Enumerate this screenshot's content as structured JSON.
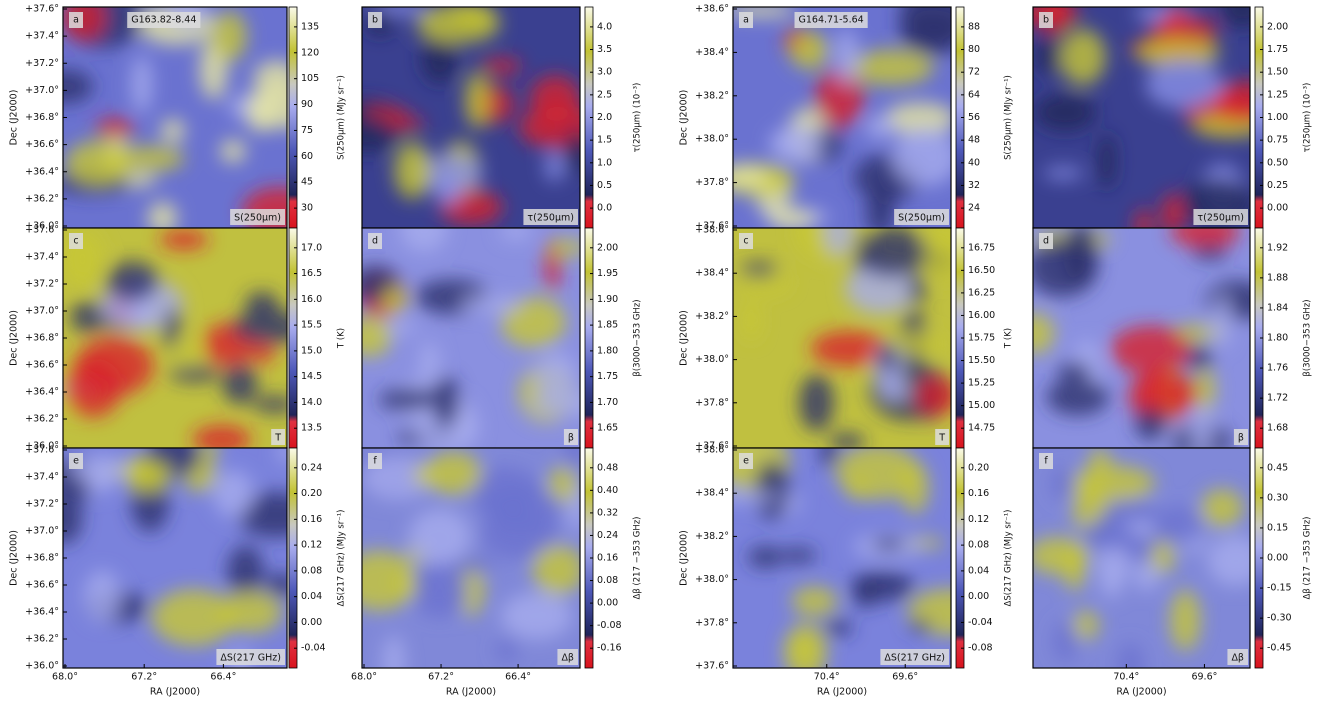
{
  "figures": [
    {
      "object": "G163.82-8.44",
      "y_axis_label": "Dec (J2000)",
      "x_axis_label": "RA (J2000)",
      "yticks": [
        "+36.0°",
        "+36.2°",
        "+36.4°",
        "+36.6°",
        "+36.8°",
        "+37.0°",
        "+37.2°",
        "+37.4°",
        "+37.6°"
      ],
      "xticks": [
        "68.0°",
        "67.2°",
        "66.4°"
      ],
      "panels": [
        {
          "letter": "a",
          "tag": "S(250μm)",
          "colorbar_label": "S(250μm) (MJy sr⁻¹)",
          "colorbar_ticks": [
            "30",
            "45",
            "60",
            "75",
            "90",
            "105",
            "120",
            "135"
          ]
        },
        {
          "letter": "b",
          "tag": "τ(250μm)",
          "colorbar_label": "τ(250μm) (10⁻³)",
          "colorbar_ticks": [
            "0.0",
            "0.5",
            "1.0",
            "1.5",
            "2.0",
            "2.5",
            "3.0",
            "3.5",
            "4.0"
          ]
        },
        {
          "letter": "c",
          "tag": "T",
          "colorbar_label": "T (K)",
          "colorbar_ticks": [
            "13.5",
            "14.0",
            "14.5",
            "15.0",
            "15.5",
            "16.0",
            "16.5",
            "17.0"
          ]
        },
        {
          "letter": "d",
          "tag": "β",
          "colorbar_label": "β(3000−353 GHz)",
          "colorbar_ticks": [
            "1.65",
            "1.70",
            "1.75",
            "1.80",
            "1.85",
            "1.90",
            "1.95",
            "2.00"
          ]
        },
        {
          "letter": "e",
          "tag": "ΔS(217 GHz)",
          "colorbar_label": "ΔS(217 GHz) (MJy sr⁻¹)",
          "colorbar_ticks": [
            "-0.04",
            "0.00",
            "0.04",
            "0.08",
            "0.12",
            "0.16",
            "0.20",
            "0.24"
          ]
        },
        {
          "letter": "f",
          "tag": "Δβ",
          "colorbar_label": "Δβ (217 −353 GHz)",
          "colorbar_ticks": [
            "-0.16",
            "-0.08",
            "0.00",
            "0.08",
            "0.16",
            "0.24",
            "0.32",
            "0.40",
            "0.48"
          ]
        }
      ]
    },
    {
      "object": "G164.71-5.64",
      "y_axis_label": "Dec (J2000)",
      "x_axis_label": "RA (J2000)",
      "yticks": [
        "+37.6°",
        "+37.8°",
        "+38.0°",
        "+38.2°",
        "+38.4°",
        "+38.6°"
      ],
      "xticks": [
        "70.4°",
        "69.6°"
      ],
      "panels": [
        {
          "letter": "a",
          "tag": "S(250μm)",
          "colorbar_label": "S(250μm) (MJy sr⁻¹)",
          "colorbar_ticks": [
            "24",
            "32",
            "40",
            "48",
            "56",
            "64",
            "72",
            "80",
            "88"
          ]
        },
        {
          "letter": "b",
          "tag": "τ(250μm)",
          "colorbar_label": "τ(250μm) (10⁻³)",
          "colorbar_ticks": [
            "0.00",
            "0.25",
            "0.50",
            "0.75",
            "1.00",
            "1.25",
            "1.50",
            "1.75",
            "2.00"
          ]
        },
        {
          "letter": "c",
          "tag": "T",
          "colorbar_label": "T (K)",
          "colorbar_ticks": [
            "14.75",
            "15.00",
            "15.25",
            "15.50",
            "15.75",
            "16.00",
            "16.25",
            "16.50",
            "16.75"
          ]
        },
        {
          "letter": "d",
          "tag": "β",
          "colorbar_label": "β(3000−353 GHz)",
          "colorbar_ticks": [
            "1.68",
            "1.72",
            "1.76",
            "1.80",
            "1.84",
            "1.88",
            "1.92"
          ]
        },
        {
          "letter": "e",
          "tag": "ΔS(217 GHz)",
          "colorbar_label": "ΔS(217 GHz) (MJy sr⁻¹)",
          "colorbar_ticks": [
            "-0.08",
            "-0.04",
            "0.00",
            "0.04",
            "0.08",
            "0.12",
            "0.16",
            "0.20"
          ]
        },
        {
          "letter": "f",
          "tag": "Δβ",
          "colorbar_label": "Δβ (217 −353 GHz)",
          "colorbar_ticks": [
            "-0.45",
            "-0.30",
            "-0.15",
            "0.00",
            "0.15",
            "0.30",
            "0.45"
          ]
        }
      ]
    }
  ]
}
